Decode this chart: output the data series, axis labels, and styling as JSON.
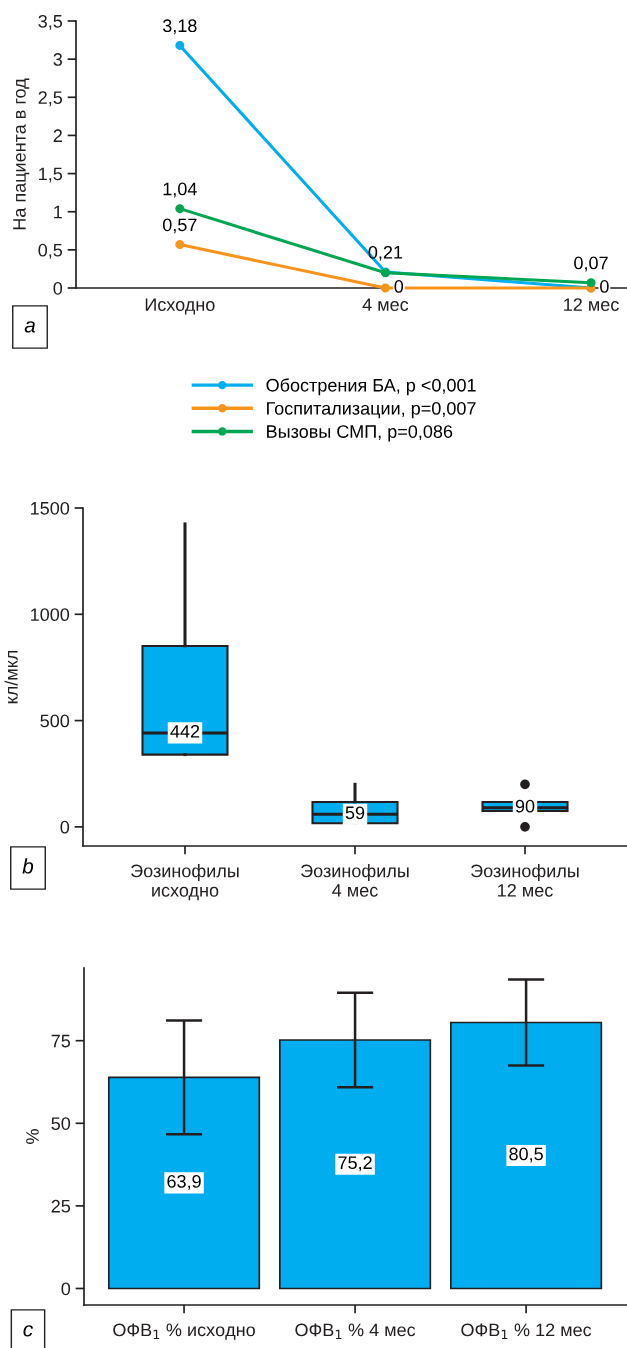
{
  "chart_data": [
    {
      "type": "line",
      "ylabel": "На пациента в год",
      "categories": [
        "Исходно",
        "4 мес",
        "12 мес"
      ],
      "series": [
        {
          "name": "Обострения БА, p <0,001",
          "color": "#00aeef",
          "values": [
            3.18,
            0.21,
            0
          ],
          "value_labels": [
            "3,18",
            "0,21",
            null
          ]
        },
        {
          "name": "Госпитализации, p=0,007",
          "color": "#f7941d",
          "values": [
            0.57,
            0,
            0
          ],
          "value_labels": [
            "0,57",
            "0",
            "0"
          ]
        },
        {
          "name": "Вызовы СМП, p=0,086",
          "color": "#00a651",
          "values": [
            1.04,
            0.2,
            0.07
          ],
          "value_labels": [
            "1,04",
            null,
            "0,07"
          ]
        }
      ],
      "ylim": [
        0,
        3.5
      ],
      "yticks": [
        0,
        {
          "value": 0.5,
          "label": "0,5"
        },
        1,
        {
          "value": 1.5,
          "label": "1,5"
        },
        2,
        {
          "value": 2.5,
          "label": "2,5"
        },
        3,
        {
          "value": 3.5,
          "label": "3,5"
        }
      ],
      "marker": "circle",
      "line_style": "solid",
      "legend": "bottom",
      "grid": false,
      "annotations": [
        "a"
      ]
    },
    {
      "type": "box",
      "ylabel": "кл/мкл",
      "categories": [
        "Эозинофилы\nисходно",
        "Эозинофилы\n4 мес",
        "Эозинофилы\n12 мес"
      ],
      "boxes": [
        {
          "low": 340,
          "q1": 340,
          "median": 442,
          "q3": 851,
          "high": 1425
        },
        {
          "low": 17,
          "q1": 17,
          "median": 59,
          "q3": 117,
          "high": 200
        },
        {
          "low": 75,
          "q1": 75,
          "median": 90,
          "q3": 117,
          "high": 117,
          "outliers": [
            200,
            0
          ]
        }
      ],
      "value_labels": [
        "442",
        "59",
        "90"
      ],
      "color": "#00aeef",
      "ylim": [
        -90,
        1500
      ],
      "yticks": [
        0,
        500,
        1000,
        1500
      ],
      "grid": false,
      "annotations": [
        "b"
      ]
    },
    {
      "type": "bar",
      "ylabel": "%",
      "categories": [
        "ОФВ$_{1}$ % исходно",
        "ОФВ$_{1}$ % 4 мес",
        "ОФВ$_{1}$ % 12 мес"
      ],
      "values": [
        63.9,
        75.2,
        80.5
      ],
      "errors": [
        17.2,
        14.3,
        13.0
      ],
      "value_labels": [
        "63,9",
        "75,2",
        "80,5"
      ],
      "color": "#00aeef",
      "ylim": [
        -5,
        97
      ],
      "yticks": [
        0,
        25,
        50,
        75
      ],
      "grid": false,
      "annotations": [
        "c"
      ]
    }
  ]
}
